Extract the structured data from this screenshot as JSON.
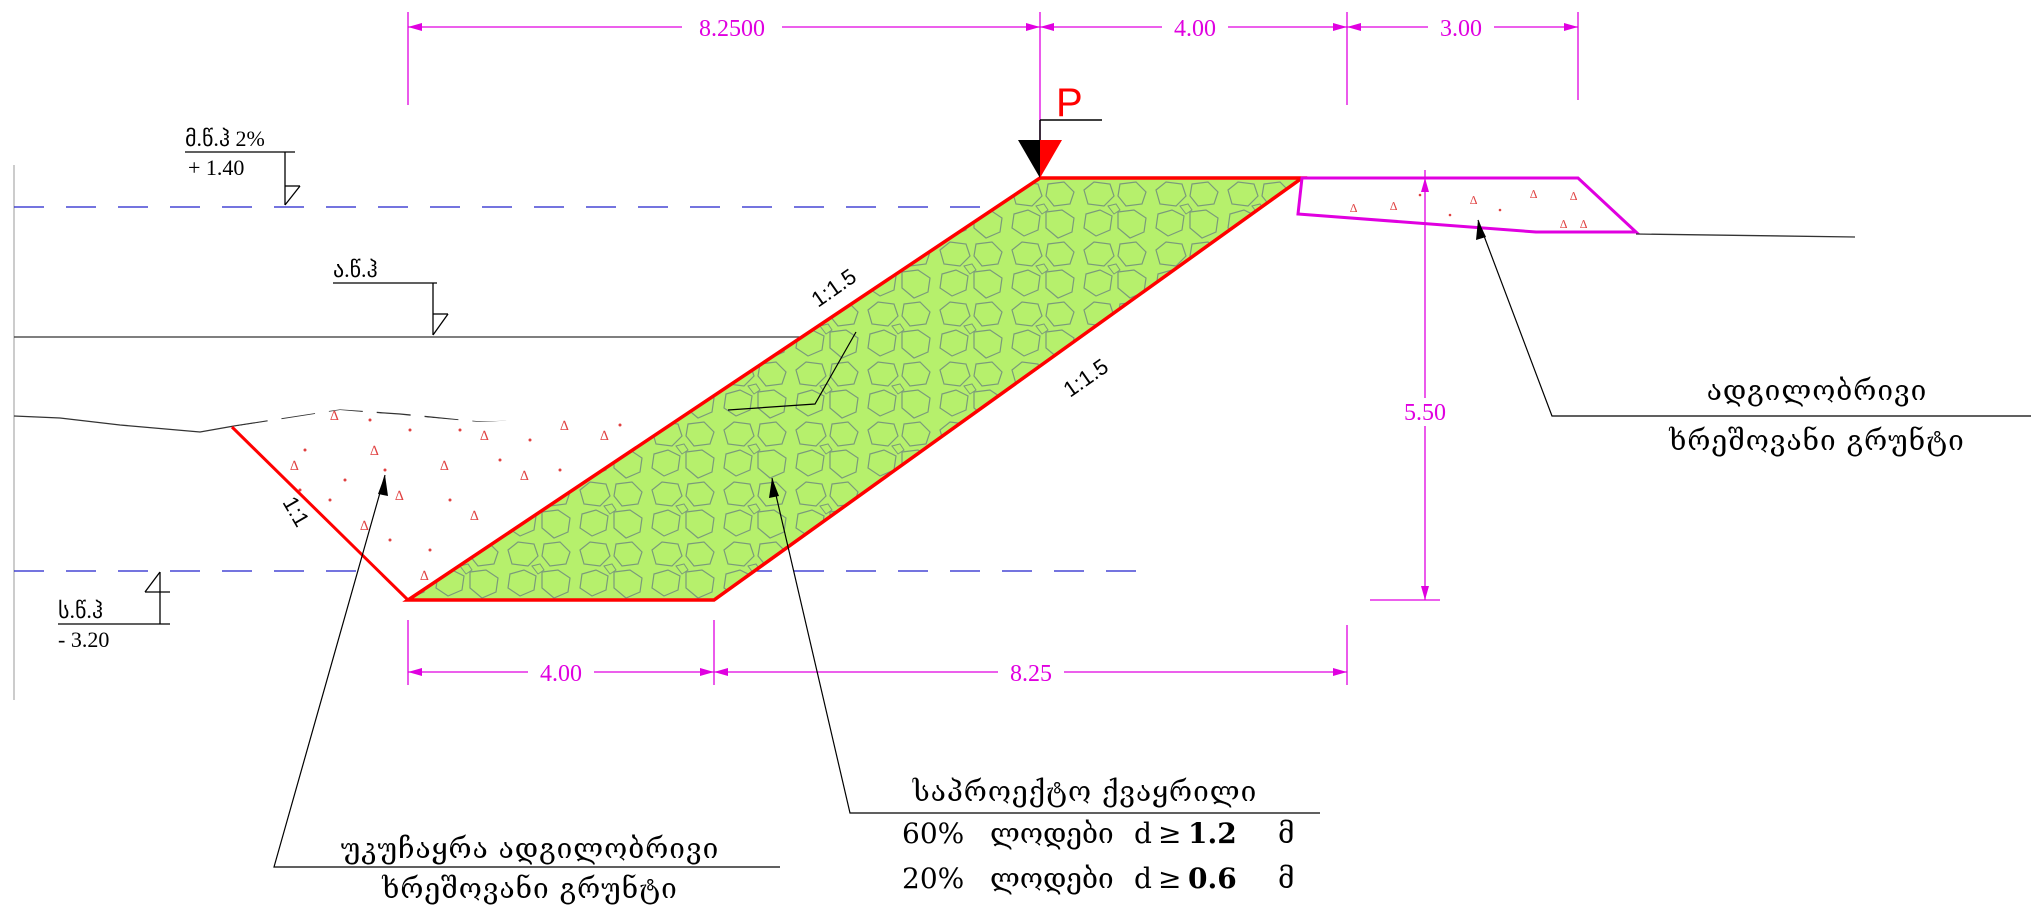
{
  "dimensions": {
    "top": [
      "8.2500",
      "4.00",
      "3.00"
    ],
    "bottom": [
      "4.00",
      "8.25"
    ],
    "height": "5.50"
  },
  "levels": {
    "max_water": {
      "label": "მ.წ.ჰ 2%",
      "value": "+ 1.40"
    },
    "avg_water": {
      "label": "ა.წ.ჰ"
    },
    "low_water": {
      "label": "ს.წ.ჰ",
      "value": "- 3.20"
    }
  },
  "slopes": {
    "upper": "1:1.5",
    "lower": "1:1.5",
    "left": "1:1"
  },
  "load": {
    "label": "P"
  },
  "labels": {
    "local_soil_right": [
      "ადგილობრივი",
      "ხრეშოვანი გრუნტი"
    ],
    "backfill": [
      "უკუჩაყრა ადგილობრივი",
      "ხრეშოვანი გრუნტი"
    ],
    "riprap": {
      "title": "საპროექტო ქვაყრილი",
      "line1": {
        "percent": "60%",
        "word": "ლოდები",
        "d": "d",
        "op": "≥",
        "size": "1.2",
        "unit": "მ"
      },
      "line2": {
        "percent": "20%",
        "word": "ლოდები",
        "d": "d",
        "op": "≥",
        "size": "0.6",
        "unit": "მ"
      }
    }
  },
  "colors": {
    "dimension": "#e000e0",
    "outline": "#ff0000",
    "fill": "#b6f06c",
    "water_line": "#2222cc"
  }
}
